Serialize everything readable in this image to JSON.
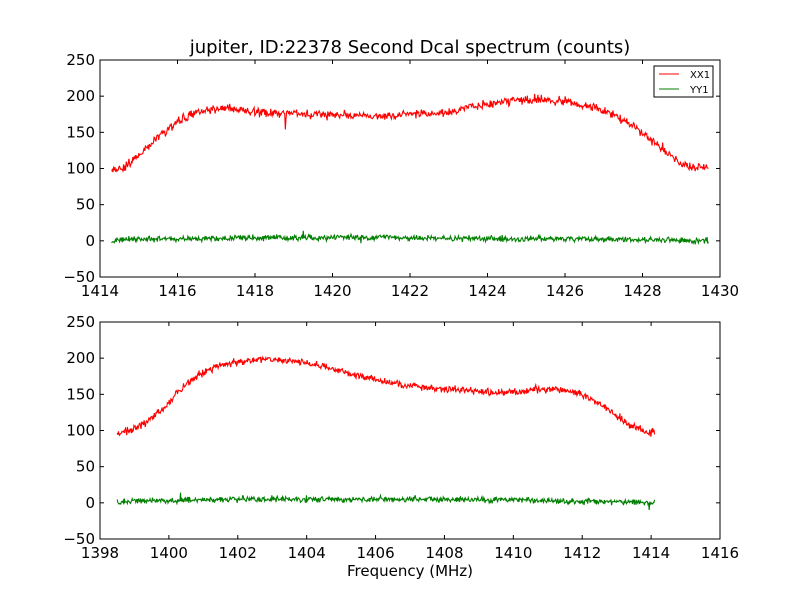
{
  "title": "jupiter, ID:22378 Second Dcal spectrum (counts)",
  "colors": {
    "XX1": "#ff0000",
    "YY1": "#007f00"
  },
  "chart_data": [
    {
      "type": "line",
      "title": "jupiter, ID:22378 Second Dcal spectrum (counts)",
      "xlabel": "",
      "ylabel": "",
      "xlim": [
        1414,
        1430
      ],
      "ylim": [
        -50,
        250
      ],
      "x_ticks": [
        "1414",
        "1416",
        "1418",
        "1420",
        "1422",
        "1424",
        "1426",
        "1428",
        "1430"
      ],
      "y_ticks": [
        "−50",
        "0",
        "50",
        "100",
        "150",
        "200",
        "250"
      ],
      "grid": false,
      "legend": {
        "placement": "top-right",
        "entries": [
          "XX1",
          "YY1"
        ]
      },
      "x_start": 1414.3,
      "x_end": 1429.7,
      "series": [
        {
          "name": "XX1",
          "color": "#ff0000",
          "x": [
            1414.3,
            1414.6,
            1415.0,
            1415.5,
            1416.0,
            1416.5,
            1417.0,
            1417.5,
            1418.0,
            1418.5,
            1419.0,
            1419.5,
            1420.0,
            1420.5,
            1421.0,
            1421.5,
            1422.0,
            1422.5,
            1423.0,
            1423.5,
            1424.0,
            1424.5,
            1425.0,
            1425.5,
            1426.0,
            1426.5,
            1427.0,
            1427.5,
            1428.0,
            1428.5,
            1429.0,
            1429.3,
            1429.7
          ],
          "y": [
            98,
            100,
            118,
            143,
            165,
            178,
            183,
            181,
            178,
            177,
            176,
            175,
            174,
            173,
            173,
            174,
            174,
            175,
            178,
            185,
            190,
            193,
            195,
            195,
            193,
            187,
            180,
            168,
            148,
            128,
            107,
            101,
            99
          ],
          "noise": 6
        },
        {
          "name": "YY1",
          "color": "#007f00",
          "x": [
            1414.3,
            1416.0,
            1418.0,
            1420.0,
            1422.0,
            1424.0,
            1426.0,
            1428.0,
            1429.7
          ],
          "y": [
            1,
            3,
            4,
            5,
            4,
            3,
            3,
            2,
            0
          ],
          "noise": 4
        }
      ]
    },
    {
      "type": "line",
      "title": "",
      "xlabel": "Frequency (MHz)",
      "ylabel": "",
      "xlim": [
        1398,
        1416
      ],
      "ylim": [
        -50,
        250
      ],
      "x_ticks": [
        "1398",
        "1400",
        "1402",
        "1404",
        "1406",
        "1408",
        "1410",
        "1412",
        "1414",
        "1416"
      ],
      "y_ticks": [
        "−50",
        "0",
        "50",
        "100",
        "150",
        "200",
        "250"
      ],
      "grid": false,
      "x_start": 1398.5,
      "x_end": 1414.1,
      "series": [
        {
          "name": "XX1",
          "color": "#ff0000",
          "x": [
            1398.5,
            1398.8,
            1399.3,
            1399.8,
            1400.3,
            1400.8,
            1401.3,
            1401.8,
            1402.3,
            1402.8,
            1403.3,
            1403.8,
            1404.3,
            1404.8,
            1405.3,
            1405.8,
            1406.3,
            1406.8,
            1407.3,
            1407.8,
            1408.3,
            1408.8,
            1409.3,
            1409.8,
            1410.3,
            1410.8,
            1411.3,
            1411.8,
            1412.3,
            1412.8,
            1413.3,
            1413.8,
            1414.1
          ],
          "y": [
            96,
            99,
            110,
            128,
            155,
            175,
            187,
            193,
            196,
            198,
            197,
            195,
            190,
            185,
            178,
            172,
            167,
            163,
            160,
            158,
            157,
            155,
            153,
            152,
            154,
            157,
            156,
            152,
            143,
            128,
            110,
            98,
            97
          ],
          "noise": 5
        },
        {
          "name": "YY1",
          "color": "#007f00",
          "x": [
            1398.5,
            1400.0,
            1402.0,
            1404.0,
            1406.0,
            1408.0,
            1410.0,
            1412.0,
            1414.1
          ],
          "y": [
            2,
            3,
            5,
            5,
            5,
            5,
            4,
            2,
            0
          ],
          "noise": 4
        }
      ]
    }
  ]
}
